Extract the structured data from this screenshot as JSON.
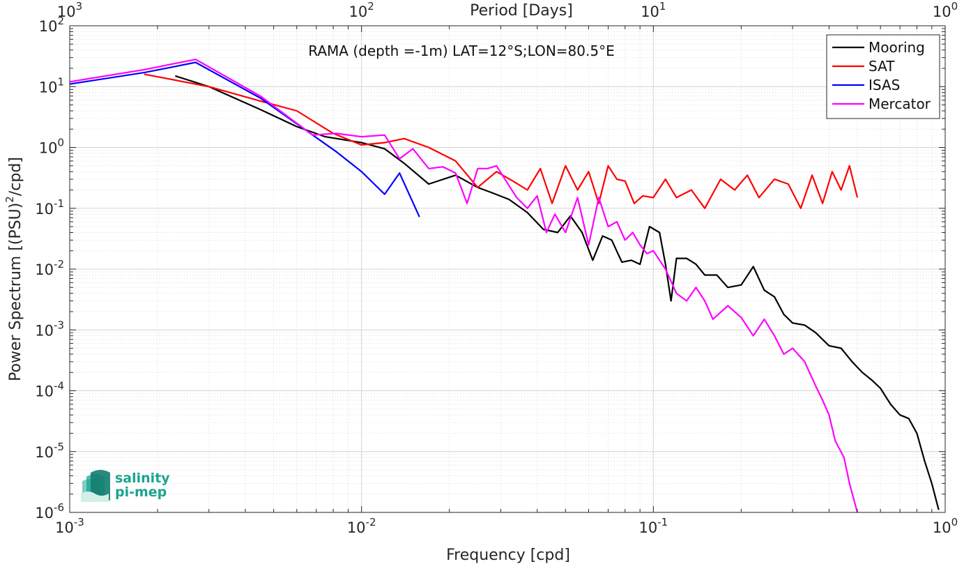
{
  "chart_data": {
    "type": "line",
    "title": "RAMA (depth =-1m) LAT=12°S;LON=80.5°E",
    "xlabel": "Frequency [cpd]",
    "ylabel_parts": [
      "Power Spectrum [(PSU)",
      "2",
      "/cpd]"
    ],
    "top_xlabel": "Period [Days]",
    "xscale": "log",
    "yscale": "log",
    "xlim": [
      0.001,
      1
    ],
    "ylim": [
      1e-06,
      100
    ],
    "grid": true,
    "legend_position": "top-right",
    "x_ticks": [
      {
        "value": 0.001,
        "base": "10",
        "exp": "-3"
      },
      {
        "value": 0.01,
        "base": "10",
        "exp": "-2"
      },
      {
        "value": 0.1,
        "base": "10",
        "exp": "-1"
      },
      {
        "value": 1,
        "base": "10",
        "exp": "0"
      }
    ],
    "top_ticks": [
      {
        "value": 0.001,
        "base": "10",
        "exp": "3"
      },
      {
        "value": 0.01,
        "base": "10",
        "exp": "2"
      },
      {
        "value": 0.1,
        "base": "10",
        "exp": "1"
      },
      {
        "value": 1,
        "base": "10",
        "exp": "0"
      }
    ],
    "y_ticks": [
      {
        "value": 1e-06,
        "base": "10",
        "exp": "-6"
      },
      {
        "value": 1e-05,
        "base": "10",
        "exp": "-5"
      },
      {
        "value": 0.0001,
        "base": "10",
        "exp": "-4"
      },
      {
        "value": 0.001,
        "base": "10",
        "exp": "-3"
      },
      {
        "value": 0.01,
        "base": "10",
        "exp": "-2"
      },
      {
        "value": 0.1,
        "base": "10",
        "exp": "-1"
      },
      {
        "value": 1,
        "base": "10",
        "exp": "0"
      },
      {
        "value": 10,
        "base": "10",
        "exp": "1"
      },
      {
        "value": 100,
        "base": "10",
        "exp": "2"
      }
    ],
    "series": [
      {
        "name": "Mooring",
        "color": "#000000",
        "x": [
          0.0023,
          0.003,
          0.0045,
          0.006,
          0.0075,
          0.01,
          0.012,
          0.014,
          0.017,
          0.021,
          0.025,
          0.028,
          0.032,
          0.037,
          0.042,
          0.047,
          0.052,
          0.057,
          0.062,
          0.067,
          0.072,
          0.078,
          0.084,
          0.09,
          0.097,
          0.105,
          0.11,
          0.115,
          0.12,
          0.13,
          0.14,
          0.15,
          0.165,
          0.18,
          0.2,
          0.22,
          0.24,
          0.26,
          0.28,
          0.3,
          0.33,
          0.36,
          0.4,
          0.44,
          0.48,
          0.52,
          0.56,
          0.6,
          0.65,
          0.7,
          0.75,
          0.8,
          0.85,
          0.9,
          0.95
        ],
        "y": [
          15,
          10,
          4.2,
          2.2,
          1.5,
          1.2,
          0.95,
          0.55,
          0.25,
          0.35,
          0.22,
          0.18,
          0.14,
          0.085,
          0.045,
          0.04,
          0.075,
          0.04,
          0.014,
          0.035,
          0.03,
          0.013,
          0.014,
          0.012,
          0.05,
          0.04,
          0.012,
          0.003,
          0.015,
          0.015,
          0.012,
          0.008,
          0.008,
          0.005,
          0.0055,
          0.011,
          0.0045,
          0.0035,
          0.0018,
          0.0013,
          0.0012,
          0.0009,
          0.00055,
          0.0005,
          0.0003,
          0.0002,
          0.00015,
          0.00011,
          6e-05,
          4e-05,
          3.5e-05,
          2e-05,
          7e-06,
          3e-06,
          1.1e-06
        ]
      },
      {
        "name": "SAT",
        "color": "#ff0000",
        "x": [
          0.0018,
          0.003,
          0.0045,
          0.006,
          0.008,
          0.01,
          0.012,
          0.014,
          0.017,
          0.021,
          0.025,
          0.029,
          0.033,
          0.037,
          0.041,
          0.045,
          0.05,
          0.055,
          0.06,
          0.065,
          0.07,
          0.075,
          0.08,
          0.086,
          0.092,
          0.1,
          0.11,
          0.12,
          0.135,
          0.15,
          0.17,
          0.19,
          0.21,
          0.23,
          0.26,
          0.29,
          0.32,
          0.35,
          0.38,
          0.41,
          0.44,
          0.47,
          0.5
        ],
        "y": [
          16,
          10,
          5.8,
          4,
          1.7,
          1.1,
          1.2,
          1.4,
          1,
          0.6,
          0.22,
          0.4,
          0.28,
          0.2,
          0.45,
          0.12,
          0.5,
          0.2,
          0.4,
          0.12,
          0.5,
          0.3,
          0.28,
          0.12,
          0.16,
          0.15,
          0.3,
          0.15,
          0.2,
          0.1,
          0.3,
          0.2,
          0.35,
          0.15,
          0.3,
          0.25,
          0.1,
          0.35,
          0.12,
          0.4,
          0.2,
          0.5,
          0.15
        ]
      },
      {
        "name": "ISAS",
        "color": "#0000ff",
        "x": [
          0.001,
          0.0018,
          0.0027,
          0.0045,
          0.0068,
          0.0082,
          0.01,
          0.012,
          0.0135,
          0.0158
        ],
        "y": [
          11,
          17,
          25,
          6.5,
          1.6,
          0.85,
          0.4,
          0.17,
          0.38,
          0.072
        ]
      },
      {
        "name": "Mercator",
        "color": "#ff00ff",
        "x": [
          0.001,
          0.0018,
          0.0027,
          0.0045,
          0.0068,
          0.0082,
          0.01,
          0.012,
          0.0135,
          0.015,
          0.017,
          0.019,
          0.021,
          0.023,
          0.025,
          0.027,
          0.029,
          0.031,
          0.034,
          0.037,
          0.04,
          0.043,
          0.046,
          0.05,
          0.055,
          0.06,
          0.065,
          0.07,
          0.075,
          0.08,
          0.085,
          0.09,
          0.095,
          0.1,
          0.11,
          0.12,
          0.13,
          0.14,
          0.15,
          0.16,
          0.18,
          0.2,
          0.22,
          0.24,
          0.26,
          0.28,
          0.3,
          0.33,
          0.36,
          0.38,
          0.4,
          0.42,
          0.45,
          0.47,
          0.5
        ],
        "y": [
          12,
          19,
          28,
          7,
          1.6,
          1.7,
          1.5,
          1.6,
          0.65,
          0.95,
          0.45,
          0.48,
          0.38,
          0.12,
          0.45,
          0.45,
          0.5,
          0.3,
          0.15,
          0.1,
          0.16,
          0.04,
          0.08,
          0.04,
          0.15,
          0.025,
          0.15,
          0.05,
          0.06,
          0.03,
          0.04,
          0.025,
          0.018,
          0.02,
          0.01,
          0.004,
          0.003,
          0.005,
          0.003,
          0.0015,
          0.0025,
          0.0016,
          0.0008,
          0.0015,
          0.0008,
          0.0004,
          0.0005,
          0.0003,
          0.00012,
          7e-05,
          4e-05,
          1.5e-05,
          8e-06,
          3e-06,
          1e-06
        ]
      }
    ]
  },
  "logo": {
    "line1": "salinity",
    "line2": "pi-mep"
  }
}
